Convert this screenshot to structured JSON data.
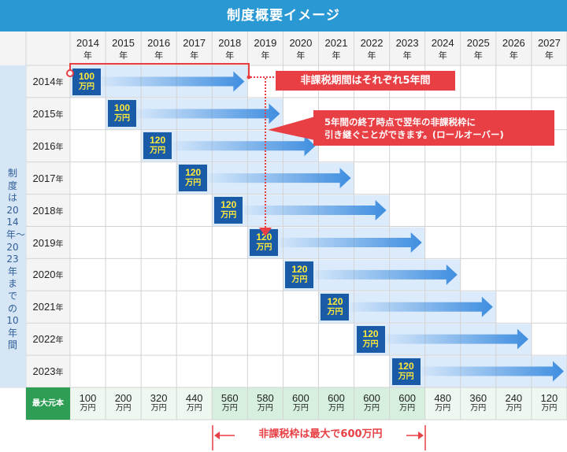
{
  "title": "制度概要イメージ",
  "years": [
    "2014",
    "2015",
    "2016",
    "2017",
    "2018",
    "2019",
    "2020",
    "2021",
    "2022",
    "2023",
    "2024",
    "2025",
    "2026",
    "2027"
  ],
  "year_suffix": "年",
  "side_label": "制度は2014年〜2023年までの10年間",
  "rows": [
    {
      "year": "2014",
      "amount": "100"
    },
    {
      "year": "2015",
      "amount": "100"
    },
    {
      "year": "2016",
      "amount": "120"
    },
    {
      "year": "2017",
      "amount": "120"
    },
    {
      "year": "2018",
      "amount": "120"
    },
    {
      "year": "2019",
      "amount": "120"
    },
    {
      "year": "2020",
      "amount": "120"
    },
    {
      "year": "2021",
      "amount": "120"
    },
    {
      "year": "2022",
      "amount": "120"
    },
    {
      "year": "2023",
      "amount": "120"
    }
  ],
  "unit": "万円",
  "max_label": "最大元本",
  "max_values": [
    "100",
    "200",
    "320",
    "440",
    "560",
    "580",
    "600",
    "600",
    "600",
    "600",
    "480",
    "360",
    "240",
    "120"
  ],
  "callouts": {
    "period": "非課税期間はそれぞれ5年間",
    "rollover_line1": "5年間の終了時点で翌年の非課税枠に",
    "rollover_line2": "引き継ぐことができます。(ロールオーバー)"
  },
  "footer": "非課税枠は最大で600万円",
  "colors": {
    "title_bg": "#2a98d3",
    "amount_box": "#1a5ba8",
    "amount_text": "#ffea3a",
    "arrow": "#3f8ee0",
    "band": "#dcebfb",
    "callout": "#e83f44",
    "max_label_bg": "#2e9e55",
    "max_highlight_bg": "#d6efde",
    "side_bg": "#d7e6f5"
  }
}
